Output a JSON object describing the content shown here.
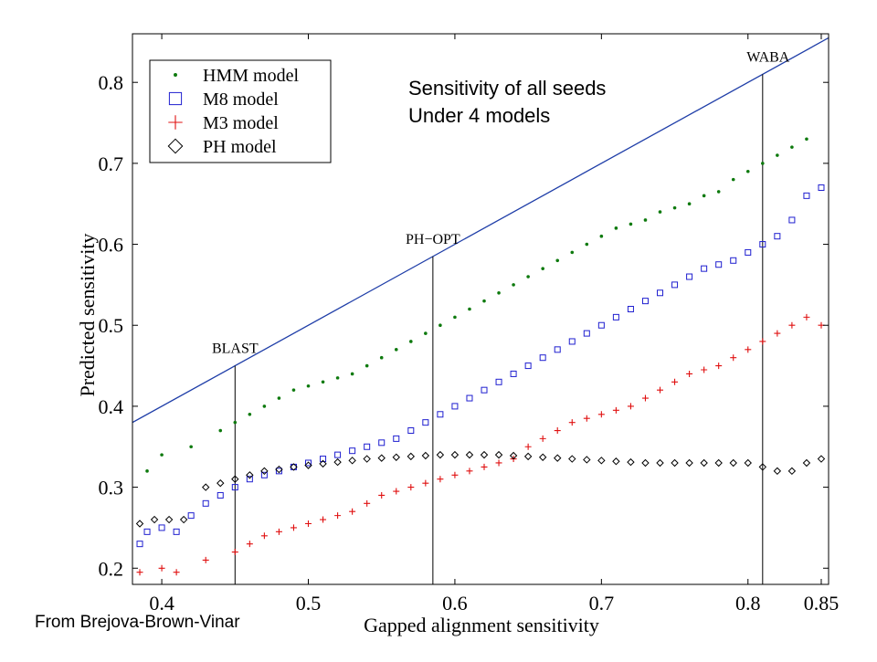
{
  "chart_data": {
    "type": "scatter",
    "xlabel": "Gapped alignment sensitivity",
    "ylabel": "Predicted sensitivity",
    "xlim": [
      0.38,
      0.855
    ],
    "ylim": [
      0.18,
      0.86
    ],
    "x_ticks": [
      {
        "value": 0.4,
        "label": "0.4"
      },
      {
        "value": 0.5,
        "label": "0.5"
      },
      {
        "value": 0.6,
        "label": "0.6"
      },
      {
        "value": 0.7,
        "label": "0.7"
      },
      {
        "value": 0.8,
        "label": "0.8"
      },
      {
        "value": 0.85,
        "label": "0.85"
      }
    ],
    "y_ticks": [
      {
        "value": 0.2,
        "label": "0.2"
      },
      {
        "value": 0.3,
        "label": "0.3"
      },
      {
        "value": 0.4,
        "label": "0.4"
      },
      {
        "value": 0.5,
        "label": "0.5"
      },
      {
        "value": 0.6,
        "label": "0.6"
      },
      {
        "value": 0.7,
        "label": "0.7"
      },
      {
        "value": 0.8,
        "label": "0.8"
      }
    ],
    "annotation_lines": [
      {
        "label": "BLAST",
        "x": 0.45,
        "y_top": 0.45
      },
      {
        "label": "PH−OPT",
        "x": 0.585,
        "y_top": 0.585
      },
      {
        "label": "WABA",
        "x": 0.81,
        "y_top": 0.81
      }
    ],
    "diagonal": {
      "from": [
        0.38,
        0.38
      ],
      "to": [
        0.855,
        0.855
      ],
      "color": "#1f3ea8"
    },
    "annotation_text": [
      "Sensitivity of all seeds",
      "Under 4 models"
    ],
    "legend_position": "top-left",
    "series": [
      {
        "name": "HMM model",
        "marker": "dot",
        "color": "#0e7a0e",
        "points": [
          [
            0.39,
            0.32
          ],
          [
            0.4,
            0.34
          ],
          [
            0.42,
            0.35
          ],
          [
            0.44,
            0.37
          ],
          [
            0.45,
            0.38
          ],
          [
            0.46,
            0.39
          ],
          [
            0.47,
            0.4
          ],
          [
            0.48,
            0.41
          ],
          [
            0.49,
            0.42
          ],
          [
            0.5,
            0.425
          ],
          [
            0.51,
            0.43
          ],
          [
            0.52,
            0.435
          ],
          [
            0.53,
            0.44
          ],
          [
            0.54,
            0.45
          ],
          [
            0.55,
            0.46
          ],
          [
            0.56,
            0.47
          ],
          [
            0.57,
            0.48
          ],
          [
            0.58,
            0.49
          ],
          [
            0.59,
            0.5
          ],
          [
            0.6,
            0.51
          ],
          [
            0.61,
            0.52
          ],
          [
            0.62,
            0.53
          ],
          [
            0.63,
            0.54
          ],
          [
            0.64,
            0.55
          ],
          [
            0.65,
            0.56
          ],
          [
            0.66,
            0.57
          ],
          [
            0.67,
            0.58
          ],
          [
            0.68,
            0.59
          ],
          [
            0.69,
            0.6
          ],
          [
            0.7,
            0.61
          ],
          [
            0.71,
            0.62
          ],
          [
            0.72,
            0.625
          ],
          [
            0.73,
            0.63
          ],
          [
            0.74,
            0.64
          ],
          [
            0.75,
            0.645
          ],
          [
            0.76,
            0.65
          ],
          [
            0.77,
            0.66
          ],
          [
            0.78,
            0.665
          ],
          [
            0.79,
            0.68
          ],
          [
            0.8,
            0.69
          ],
          [
            0.81,
            0.7
          ],
          [
            0.82,
            0.71
          ],
          [
            0.83,
            0.72
          ],
          [
            0.84,
            0.73
          ]
        ]
      },
      {
        "name": "M8 model",
        "marker": "square",
        "color": "#1f1fd0",
        "points": [
          [
            0.385,
            0.23
          ],
          [
            0.39,
            0.245
          ],
          [
            0.4,
            0.25
          ],
          [
            0.41,
            0.245
          ],
          [
            0.42,
            0.265
          ],
          [
            0.43,
            0.28
          ],
          [
            0.44,
            0.29
          ],
          [
            0.45,
            0.3
          ],
          [
            0.46,
            0.31
          ],
          [
            0.47,
            0.315
          ],
          [
            0.48,
            0.32
          ],
          [
            0.49,
            0.325
          ],
          [
            0.5,
            0.33
          ],
          [
            0.51,
            0.335
          ],
          [
            0.52,
            0.34
          ],
          [
            0.53,
            0.345
          ],
          [
            0.54,
            0.35
          ],
          [
            0.55,
            0.355
          ],
          [
            0.56,
            0.36
          ],
          [
            0.57,
            0.37
          ],
          [
            0.58,
            0.38
          ],
          [
            0.59,
            0.39
          ],
          [
            0.6,
            0.4
          ],
          [
            0.61,
            0.41
          ],
          [
            0.62,
            0.42
          ],
          [
            0.63,
            0.43
          ],
          [
            0.64,
            0.44
          ],
          [
            0.65,
            0.45
          ],
          [
            0.66,
            0.46
          ],
          [
            0.67,
            0.47
          ],
          [
            0.68,
            0.48
          ],
          [
            0.69,
            0.49
          ],
          [
            0.7,
            0.5
          ],
          [
            0.71,
            0.51
          ],
          [
            0.72,
            0.52
          ],
          [
            0.73,
            0.53
          ],
          [
            0.74,
            0.54
          ],
          [
            0.75,
            0.55
          ],
          [
            0.76,
            0.56
          ],
          [
            0.77,
            0.57
          ],
          [
            0.78,
            0.575
          ],
          [
            0.79,
            0.58
          ],
          [
            0.8,
            0.59
          ],
          [
            0.81,
            0.6
          ],
          [
            0.82,
            0.61
          ],
          [
            0.83,
            0.63
          ],
          [
            0.84,
            0.66
          ],
          [
            0.85,
            0.67
          ]
        ]
      },
      {
        "name": "M3 model",
        "marker": "plus",
        "color": "#e01010",
        "points": [
          [
            0.385,
            0.195
          ],
          [
            0.4,
            0.2
          ],
          [
            0.41,
            0.195
          ],
          [
            0.43,
            0.21
          ],
          [
            0.45,
            0.22
          ],
          [
            0.46,
            0.23
          ],
          [
            0.47,
            0.24
          ],
          [
            0.48,
            0.245
          ],
          [
            0.49,
            0.25
          ],
          [
            0.5,
            0.255
          ],
          [
            0.51,
            0.26
          ],
          [
            0.52,
            0.265
          ],
          [
            0.53,
            0.27
          ],
          [
            0.54,
            0.28
          ],
          [
            0.55,
            0.29
          ],
          [
            0.56,
            0.295
          ],
          [
            0.57,
            0.3
          ],
          [
            0.58,
            0.305
          ],
          [
            0.59,
            0.31
          ],
          [
            0.6,
            0.315
          ],
          [
            0.61,
            0.32
          ],
          [
            0.62,
            0.325
          ],
          [
            0.63,
            0.33
          ],
          [
            0.64,
            0.335
          ],
          [
            0.65,
            0.35
          ],
          [
            0.66,
            0.36
          ],
          [
            0.67,
            0.37
          ],
          [
            0.68,
            0.38
          ],
          [
            0.69,
            0.385
          ],
          [
            0.7,
            0.39
          ],
          [
            0.71,
            0.395
          ],
          [
            0.72,
            0.4
          ],
          [
            0.73,
            0.41
          ],
          [
            0.74,
            0.42
          ],
          [
            0.75,
            0.43
          ],
          [
            0.76,
            0.44
          ],
          [
            0.77,
            0.445
          ],
          [
            0.78,
            0.45
          ],
          [
            0.79,
            0.46
          ],
          [
            0.8,
            0.47
          ],
          [
            0.81,
            0.48
          ],
          [
            0.82,
            0.49
          ],
          [
            0.83,
            0.5
          ],
          [
            0.84,
            0.51
          ],
          [
            0.85,
            0.5
          ]
        ]
      },
      {
        "name": "PH model",
        "marker": "diamond",
        "color": "#000000",
        "points": [
          [
            0.385,
            0.255
          ],
          [
            0.395,
            0.26
          ],
          [
            0.405,
            0.26
          ],
          [
            0.415,
            0.26
          ],
          [
            0.43,
            0.3
          ],
          [
            0.44,
            0.305
          ],
          [
            0.45,
            0.31
          ],
          [
            0.46,
            0.315
          ],
          [
            0.47,
            0.32
          ],
          [
            0.48,
            0.322
          ],
          [
            0.49,
            0.325
          ],
          [
            0.5,
            0.327
          ],
          [
            0.51,
            0.329
          ],
          [
            0.52,
            0.331
          ],
          [
            0.53,
            0.333
          ],
          [
            0.54,
            0.335
          ],
          [
            0.55,
            0.336
          ],
          [
            0.56,
            0.337
          ],
          [
            0.57,
            0.338
          ],
          [
            0.58,
            0.339
          ],
          [
            0.59,
            0.34
          ],
          [
            0.6,
            0.34
          ],
          [
            0.61,
            0.34
          ],
          [
            0.62,
            0.34
          ],
          [
            0.63,
            0.34
          ],
          [
            0.64,
            0.339
          ],
          [
            0.65,
            0.338
          ],
          [
            0.66,
            0.337
          ],
          [
            0.67,
            0.336
          ],
          [
            0.68,
            0.335
          ],
          [
            0.69,
            0.334
          ],
          [
            0.7,
            0.333
          ],
          [
            0.71,
            0.332
          ],
          [
            0.72,
            0.331
          ],
          [
            0.73,
            0.33
          ],
          [
            0.74,
            0.33
          ],
          [
            0.75,
            0.33
          ],
          [
            0.76,
            0.33
          ],
          [
            0.77,
            0.33
          ],
          [
            0.78,
            0.33
          ],
          [
            0.79,
            0.33
          ],
          [
            0.8,
            0.33
          ],
          [
            0.81,
            0.325
          ],
          [
            0.82,
            0.32
          ],
          [
            0.83,
            0.32
          ],
          [
            0.84,
            0.33
          ],
          [
            0.85,
            0.335
          ]
        ]
      }
    ]
  },
  "credit": "From Brejova-Brown-Vinar"
}
